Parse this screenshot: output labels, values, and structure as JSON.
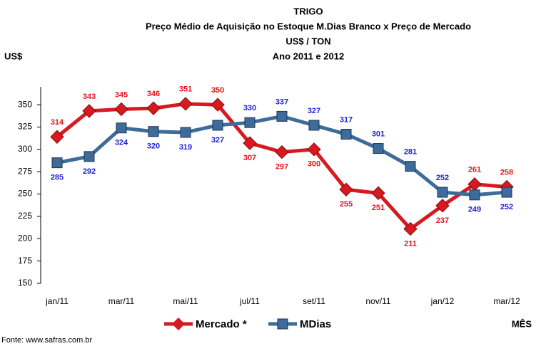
{
  "chart_data": {
    "type": "line",
    "title": "TRIGO",
    "subtitle": [
      "Preço Médio de Aquisição no Estoque M.Dias Branco x Preço de Mercado",
      "US$ / TON",
      "Ano 2011 e 2012"
    ],
    "y_label": "US$",
    "x_label": "MÊS",
    "source": "Fonte: www.safras.com.br",
    "categories": [
      "jan/11",
      null,
      "mar/11",
      null,
      "mai/11",
      null,
      "jul/11",
      null,
      "set/11",
      null,
      "nov/11",
      null,
      "jan/12",
      null,
      "mar/12"
    ],
    "series": [
      {
        "name": "Mercado *",
        "color": "#d71920",
        "values": [
          314,
          343,
          345,
          346,
          351,
          350,
          307,
          297,
          300,
          255,
          251,
          211,
          237,
          261,
          258
        ]
      },
      {
        "name": "MDias",
        "color": "#3d6b9a",
        "values": [
          285,
          292,
          324,
          320,
          319,
          327,
          330,
          337,
          327,
          317,
          301,
          281,
          252,
          249,
          252
        ]
      }
    ],
    "label_colors": [
      "#e8141b",
      "#1f1fd6"
    ],
    "ylim": [
      150,
      370
    ],
    "yticks": [
      150,
      175,
      200,
      225,
      250,
      275,
      300,
      325,
      350
    ],
    "grid": false,
    "legend": "bottom"
  }
}
